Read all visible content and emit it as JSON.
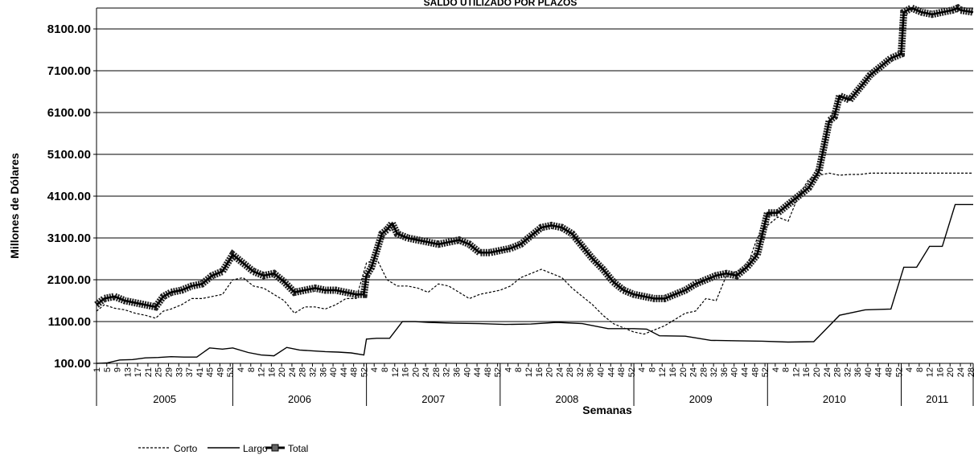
{
  "chart_data": {
    "type": "line",
    "title": "SALDO UTILIZADO POR PLAZOS",
    "xlabel": "Semanas",
    "ylabel": "Millones de Dólares",
    "ylim": [
      100,
      8600
    ],
    "yticks": [
      "8100.00",
      "7100.00",
      "6100.00",
      "5100.00",
      "4100.00",
      "3100.00",
      "2100.00",
      "1100.00",
      "100.00"
    ],
    "ytick_values": [
      8100,
      7100,
      6100,
      5100,
      4100,
      3100,
      2100,
      1100,
      100
    ],
    "grid": true,
    "legend_position": "bottom-left",
    "years": [
      {
        "label": "2005",
        "weeks": 53,
        "tick_labels": [
          "1",
          "5",
          "9",
          "13",
          "17",
          "21",
          "25",
          "29",
          "33",
          "37",
          "41",
          "45",
          "49",
          "53"
        ]
      },
      {
        "label": "2006",
        "weeks": 52,
        "tick_labels": [
          "4",
          "8",
          "12",
          "16",
          "20",
          "24",
          "28",
          "32",
          "36",
          "40",
          "44",
          "48",
          "52"
        ]
      },
      {
        "label": "2007",
        "weeks": 52,
        "tick_labels": [
          "4",
          "8",
          "12",
          "16",
          "20",
          "24",
          "28",
          "32",
          "36",
          "40",
          "44",
          "48",
          "52"
        ]
      },
      {
        "label": "2008",
        "weeks": 52,
        "tick_labels": [
          "4",
          "8",
          "12",
          "16",
          "20",
          "24",
          "28",
          "32",
          "36",
          "40",
          "44",
          "48",
          "52"
        ]
      },
      {
        "label": "2009",
        "weeks": 52,
        "tick_labels": [
          "4",
          "8",
          "12",
          "16",
          "20",
          "24",
          "28",
          "32",
          "36",
          "40",
          "44",
          "48",
          "52"
        ]
      },
      {
        "label": "2010",
        "weeks": 52,
        "tick_labels": [
          "4",
          "8",
          "12",
          "16",
          "20",
          "24",
          "28",
          "32",
          "36",
          "40",
          "44",
          "48",
          "52"
        ]
      },
      {
        "label": "2011",
        "weeks": 29,
        "tick_labels": [
          "4",
          "8",
          "12",
          "16",
          "20",
          "24",
          "28"
        ]
      }
    ],
    "series": [
      {
        "name": "Corto",
        "style": "dashed",
        "x": [
          1,
          4,
          8,
          12,
          16,
          20,
          24,
          27,
          30,
          34,
          38,
          42,
          46,
          50,
          54,
          58,
          62,
          66,
          70,
          74,
          78,
          82,
          86,
          90,
          94,
          98,
          102,
          106,
          110,
          114,
          118,
          122,
          126,
          130,
          134,
          138,
          142,
          146,
          150,
          154,
          158,
          162,
          166,
          170,
          174,
          178,
          182,
          186,
          190,
          194,
          198,
          202,
          206,
          210,
          214,
          218,
          222,
          226,
          230,
          234,
          238,
          242,
          246,
          250,
          254,
          258,
          262,
          266,
          270,
          274,
          278,
          282,
          286,
          290,
          294,
          298,
          302,
          306,
          310,
          314,
          318,
          322,
          326,
          330,
          334,
          338,
          342
        ],
        "values": [
          1350,
          1500,
          1420,
          1380,
          1300,
          1250,
          1180,
          1350,
          1400,
          1500,
          1650,
          1650,
          1700,
          1750,
          2100,
          2150,
          1950,
          1900,
          1750,
          1600,
          1300,
          1450,
          1450,
          1400,
          1500,
          1650,
          1650,
          2500,
          2600,
          2100,
          1950,
          1950,
          1900,
          1800,
          2000,
          1950,
          1800,
          1650,
          1750,
          1800,
          1850,
          1950,
          2150,
          2250,
          2350,
          2250,
          2150,
          1900,
          1700,
          1500,
          1250,
          1050,
          950,
          850,
          800,
          900,
          1000,
          1150,
          1300,
          1350,
          1650,
          1600,
          2200,
          2300,
          2400,
          3100,
          3400,
          3600,
          3500,
          4100,
          4500,
          4600,
          4650,
          4600,
          4620,
          4620,
          4650,
          4650,
          4650,
          4650,
          4650,
          4650,
          4650,
          4650,
          4650,
          4650,
          4650
        ]
      },
      {
        "name": "Largo",
        "style": "solid",
        "x": [
          1,
          5,
          10,
          15,
          20,
          25,
          30,
          35,
          40,
          45,
          50,
          54,
          60,
          65,
          70,
          75,
          80,
          85,
          90,
          95,
          100,
          105,
          106,
          110,
          115,
          120,
          125,
          130,
          140,
          150,
          160,
          170,
          180,
          190,
          200,
          210,
          215,
          220,
          230,
          240,
          250,
          260,
          270,
          280,
          290,
          300,
          310,
          315,
          320,
          325,
          330,
          335,
          342
        ],
        "values": [
          100,
          110,
          180,
          190,
          230,
          240,
          260,
          250,
          250,
          470,
          440,
          470,
          360,
          300,
          280,
          480,
          420,
          400,
          380,
          370,
          350,
          300,
          680,
          700,
          700,
          1100,
          1100,
          1080,
          1060,
          1050,
          1030,
          1040,
          1080,
          1050,
          930,
          930,
          920,
          760,
          750,
          650,
          640,
          630,
          610,
          620,
          1250,
          1380,
          1400,
          2400,
          2400,
          2900,
          2900,
          3900,
          3900
        ]
      },
      {
        "name": "Total",
        "style": "thick-marker",
        "x": [
          1,
          4,
          8,
          12,
          16,
          20,
          24,
          27,
          30,
          34,
          38,
          42,
          46,
          50,
          54,
          58,
          62,
          66,
          70,
          74,
          78,
          82,
          86,
          90,
          94,
          98,
          102,
          105,
          106,
          108,
          110,
          112,
          114,
          116,
          118,
          122,
          126,
          130,
          134,
          138,
          142,
          146,
          150,
          154,
          158,
          162,
          166,
          170,
          174,
          178,
          182,
          186,
          190,
          194,
          198,
          202,
          206,
          210,
          214,
          218,
          222,
          226,
          230,
          234,
          238,
          242,
          246,
          250,
          254,
          258,
          262,
          266,
          270,
          274,
          278,
          282,
          286,
          288,
          290,
          294,
          298,
          302,
          306,
          310,
          314,
          315,
          318,
          322,
          326,
          330,
          334,
          336,
          337,
          342
        ],
        "values": [
          1500,
          1650,
          1700,
          1600,
          1550,
          1500,
          1450,
          1700,
          1800,
          1850,
          1950,
          2000,
          2200,
          2300,
          2700,
          2500,
          2300,
          2200,
          2250,
          2050,
          1800,
          1850,
          1900,
          1850,
          1850,
          1800,
          1750,
          1750,
          2200,
          2400,
          2800,
          3200,
          3300,
          3450,
          3200,
          3100,
          3050,
          3000,
          2950,
          3000,
          3050,
          2950,
          2750,
          2750,
          2800,
          2850,
          2950,
          3150,
          3350,
          3400,
          3350,
          3200,
          2900,
          2600,
          2350,
          2050,
          1850,
          1750,
          1700,
          1650,
          1650,
          1750,
          1850,
          2000,
          2100,
          2200,
          2250,
          2200,
          2400,
          2700,
          3700,
          3700,
          3900,
          4100,
          4300,
          4700,
          5900,
          6000,
          6500,
          6400,
          6700,
          7000,
          7200,
          7400,
          7500,
          8500,
          8600,
          8500,
          8450,
          8500,
          8550,
          8600,
          8550,
          8500
        ]
      }
    ]
  }
}
